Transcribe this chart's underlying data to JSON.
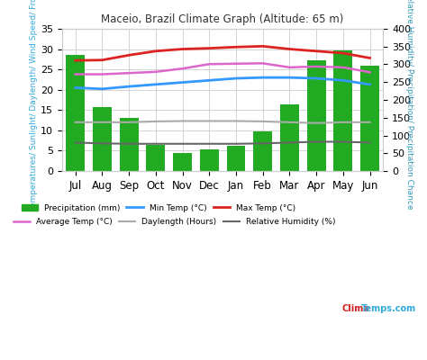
{
  "title": "Maceio, Brazil Climate Graph (Altitude: 65 m)",
  "months": [
    "Jul",
    "Aug",
    "Sep",
    "Oct",
    "Nov",
    "Dec",
    "Jan",
    "Feb",
    "Mar",
    "Apr",
    "May",
    "Jun"
  ],
  "precipitation": [
    28.5,
    15.8,
    13.0,
    6.4,
    4.4,
    5.4,
    6.3,
    9.7,
    16.5,
    27.2,
    29.7,
    26.0
  ],
  "min_temp": [
    20.5,
    20.2,
    20.8,
    21.3,
    21.8,
    22.3,
    22.8,
    23.0,
    23.0,
    22.8,
    22.3,
    21.3
  ],
  "max_temp": [
    27.2,
    27.3,
    28.5,
    29.5,
    30.0,
    30.2,
    30.5,
    30.7,
    30.0,
    29.5,
    29.0,
    27.8
  ],
  "avg_temp": [
    23.8,
    23.8,
    24.1,
    24.4,
    25.2,
    26.3,
    26.4,
    26.5,
    25.5,
    25.7,
    25.5,
    24.3
  ],
  "daylength": [
    12.0,
    12.0,
    12.0,
    12.2,
    12.3,
    12.3,
    12.3,
    12.2,
    12.0,
    11.8,
    12.0,
    12.0
  ],
  "rel_humidity": [
    7.0,
    6.8,
    6.7,
    6.7,
    6.7,
    6.7,
    6.7,
    6.8,
    7.0,
    7.2,
    7.2,
    7.0
  ],
  "bar_color": "#22aa22",
  "min_temp_color": "#3399ff",
  "max_temp_color": "#dd2222",
  "avg_temp_color": "#dd66cc",
  "daylength_color": "#aaaaaa",
  "rel_humidity_color": "#666666",
  "ylabel_left_colors": [
    "#33aadd",
    "#ffcc00",
    "#dd66cc",
    "#aaaaaa"
  ],
  "ylabel_left": "Temperatures/ Sunlight/ Daylength/ Wind Speed/ Frost",
  "ylabel_right": "Relative Humidity/ Precipitation/ Precipitation Chance",
  "ylim_left": [
    0,
    35
  ],
  "ylim_right": [
    0,
    400
  ],
  "background_color": "#ffffff",
  "grid_color": "#cccccc",
  "watermark": "ClimaTemps.com",
  "watermark_color_clima": "#cc2222",
  "watermark_color_temps": "#33aadd"
}
